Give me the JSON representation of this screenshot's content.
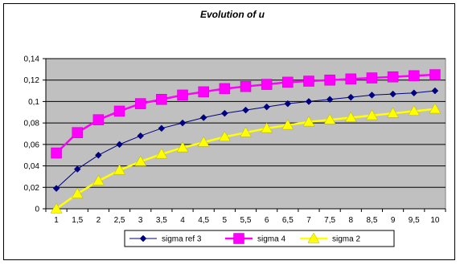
{
  "chart_data": {
    "type": "line",
    "title": "Evolution of u",
    "xlabel": "",
    "ylabel": "",
    "categories": [
      "1",
      "1,5",
      "2",
      "2,5",
      "3",
      "3,5",
      "4",
      "4,5",
      "5",
      "5,5",
      "6",
      "6,5",
      "7",
      "7,5",
      "8",
      "8,5",
      "9",
      "9,5",
      "10"
    ],
    "ylim": [
      0,
      0.14
    ],
    "y_ticks": [
      "0",
      "0,02",
      "0,04",
      "0,06",
      "0,08",
      "0,1",
      "0,12",
      "0,14"
    ],
    "grid": "horizontal",
    "plot_background": "#c0c0c0",
    "legend_position": "bottom",
    "series": [
      {
        "name": "sigma ref 3",
        "color": "#000080",
        "marker": "diamond",
        "values": [
          0.019,
          0.037,
          0.05,
          0.06,
          0.068,
          0.075,
          0.08,
          0.085,
          0.089,
          0.092,
          0.095,
          0.098,
          0.1,
          0.102,
          0.104,
          0.106,
          0.107,
          0.108,
          0.11
        ]
      },
      {
        "name": "sigma 4",
        "color": "#ff00ff",
        "marker": "square",
        "values": [
          0.052,
          0.071,
          0.083,
          0.091,
          0.098,
          0.102,
          0.106,
          0.109,
          0.112,
          0.114,
          0.116,
          0.118,
          0.119,
          0.12,
          0.121,
          0.122,
          0.123,
          0.124,
          0.125
        ]
      },
      {
        "name": "sigma 2",
        "color": "#ffff00",
        "marker": "triangle",
        "values": [
          0.0,
          0.014,
          0.026,
          0.036,
          0.044,
          0.051,
          0.057,
          0.062,
          0.067,
          0.071,
          0.075,
          0.078,
          0.081,
          0.083,
          0.085,
          0.087,
          0.089,
          0.091,
          0.093
        ]
      }
    ]
  }
}
